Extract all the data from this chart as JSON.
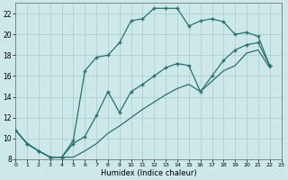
{
  "xlabel": "Humidex (Indice chaleur)",
  "bg_color": "#cce8e8",
  "line_color": "#2a7070",
  "grid_color": "#aacccc",
  "xlim": [
    0,
    23
  ],
  "ylim": [
    8,
    23
  ],
  "yticks": [
    8,
    10,
    12,
    14,
    16,
    18,
    20,
    22
  ],
  "xticks": [
    0,
    1,
    2,
    3,
    4,
    5,
    6,
    7,
    8,
    9,
    10,
    11,
    12,
    13,
    14,
    15,
    16,
    17,
    18,
    19,
    20,
    21,
    22,
    23
  ],
  "upper_x": [
    0,
    1,
    2,
    3,
    4,
    5,
    6,
    7,
    8,
    9,
    10,
    11,
    12,
    13,
    14,
    15,
    16,
    17,
    18,
    19,
    20,
    21,
    22
  ],
  "upper_y": [
    10.8,
    9.5,
    8.8,
    8.2,
    8.2,
    9.8,
    16.5,
    17.8,
    18.0,
    19.2,
    21.3,
    21.5,
    22.5,
    22.5,
    22.5,
    20.8,
    21.3,
    21.5,
    21.2,
    20.0,
    20.2,
    19.8,
    17.0
  ],
  "mid_x": [
    0,
    1,
    2,
    3,
    4,
    5,
    6,
    7,
    8,
    9,
    10,
    11,
    12,
    13,
    14,
    15,
    16,
    17,
    18,
    19,
    20,
    21,
    22
  ],
  "mid_y": [
    10.8,
    9.5,
    8.8,
    8.2,
    8.2,
    9.5,
    10.2,
    12.2,
    14.5,
    12.5,
    14.5,
    15.2,
    16.0,
    16.8,
    17.2,
    17.0,
    14.5,
    16.0,
    17.5,
    18.5,
    19.0,
    19.2,
    17.0
  ],
  "low_x": [
    0,
    1,
    2,
    3,
    4,
    5,
    6,
    7,
    8,
    9,
    10,
    11,
    12,
    13,
    14,
    15,
    16,
    17,
    18,
    19,
    20,
    21,
    22
  ],
  "low_y": [
    10.8,
    9.5,
    8.8,
    8.2,
    8.2,
    8.2,
    8.8,
    9.5,
    10.5,
    11.2,
    12.0,
    12.8,
    13.5,
    14.2,
    14.8,
    15.2,
    14.5,
    15.5,
    16.5,
    17.0,
    18.2,
    18.5,
    16.8
  ]
}
